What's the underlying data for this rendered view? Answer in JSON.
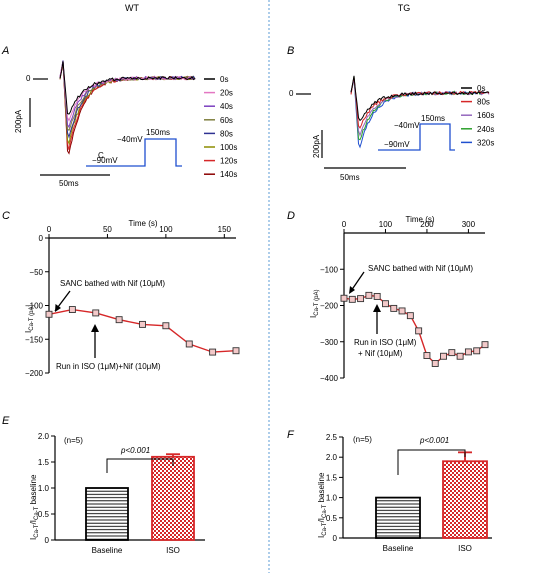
{
  "headers": {
    "left": "WT",
    "right": "TG"
  },
  "colors": {
    "divider": "#5b9bd5",
    "protocol": "#1f4fcf",
    "ivline": "#d62728",
    "ivmarker": "#c0392b",
    "iso_bar": "#d62728"
  },
  "panels": {
    "A": {
      "letter": "A",
      "zero_label": "0",
      "scale_current": "200pA",
      "scale_time": "50ms",
      "extra_label": "C",
      "protocol": {
        "hold": "−90mV",
        "step": "−40mV",
        "duration": "150ms"
      },
      "legend": [
        {
          "label": "0s",
          "color": "#000000"
        },
        {
          "label": "20s",
          "color": "#e377c2"
        },
        {
          "label": "40s",
          "color": "#7b3fbf"
        },
        {
          "label": "60s",
          "color": "#7f7f3f"
        },
        {
          "label": "80s",
          "color": "#2e3192"
        },
        {
          "label": "100s",
          "color": "#8c8c00"
        },
        {
          "label": "120s",
          "color": "#d62728"
        },
        {
          "label": "140s",
          "color": "#8b0000"
        }
      ]
    },
    "B": {
      "letter": "B",
      "zero_label": "0",
      "scale_current": "200pA",
      "scale_time": "50ms",
      "protocol": {
        "hold": "−90mV",
        "step": "−40mV",
        "duration": "150ms"
      },
      "legend": [
        {
          "label": "0s",
          "color": "#000000"
        },
        {
          "label": "80s",
          "color": "#d62728"
        },
        {
          "label": "160s",
          "color": "#9467bd"
        },
        {
          "label": "240s",
          "color": "#2ca02c"
        },
        {
          "label": "320s",
          "color": "#1f4fcf"
        }
      ]
    },
    "C": {
      "letter": "C",
      "annotation_top": "SANC bathed with Nif (10μM)",
      "annotation_bottom": "Run in ISO (1μM)+Nif (10μM)",
      "ylabel_main": "I",
      "ylabel_sub": "Ca-T (pA)"
    },
    "D": {
      "letter": "D",
      "annotation_top": "SANC bathed with Nif (10μM)",
      "annotation_bottom_1": "Run in ISO (1μM)",
      "annotation_bottom_2": "+ Nif (10μM)",
      "ylabel_main": "I",
      "ylabel_sub": "Ca-T (pA)"
    },
    "E": {
      "letter": "E",
      "n_label": "(n=5)",
      "p_label": "p<0.001",
      "ylabel": "I",
      "ylabel_sub1": "Ca-T",
      "ylabel_mid": "/I",
      "ylabel_sub2": "Ca-T",
      "ylabel_end": " baseline"
    },
    "F": {
      "letter": "F",
      "n_label": "(n=5)",
      "p_label": "p<0.001",
      "ylabel": "I",
      "ylabel_sub1": "Ca-T",
      "ylabel_mid": "/I",
      "ylabel_sub2": "Ca-T",
      "ylabel_end": " baseline"
    }
  },
  "chart_data": [
    {
      "panel": "C",
      "type": "line",
      "xlabel": "Time (s)",
      "xlim": [
        0,
        160
      ],
      "xticks": [
        0,
        50,
        100,
        150
      ],
      "ylim": [
        -200,
        0
      ],
      "yticks": [
        0,
        -50,
        -100,
        -150,
        -200
      ],
      "x": [
        0,
        20,
        40,
        60,
        80,
        100,
        120,
        140,
        160
      ],
      "y": [
        -113,
        -106,
        -111,
        -121,
        -128,
        -130,
        -157,
        -169,
        -167
      ]
    },
    {
      "panel": "D",
      "type": "line",
      "xlabel": "Time (s)",
      "xlim": [
        0,
        340
      ],
      "xticks": [
        0,
        100,
        200,
        300
      ],
      "ylim": [
        -400,
        0
      ],
      "yticks": [
        -100,
        -200,
        -300,
        -400
      ],
      "x": [
        0,
        20,
        40,
        60,
        80,
        100,
        120,
        140,
        160,
        180,
        200,
        220,
        240,
        260,
        280,
        300,
        320,
        340
      ],
      "y": [
        -180,
        -183,
        -181,
        -172,
        -175,
        -195,
        -208,
        -215,
        -228,
        -270,
        -338,
        -360,
        -340,
        -330,
        -340,
        -328,
        -325,
        -308
      ]
    },
    {
      "panel": "E",
      "type": "bar",
      "categories": [
        "Baseline",
        "ISO"
      ],
      "values": [
        1.0,
        1.6
      ],
      "errors": [
        0,
        0.05
      ],
      "ylim": [
        0,
        2.0
      ],
      "yticks": [
        0,
        0.5,
        1.0,
        1.5,
        2.0
      ]
    },
    {
      "panel": "F",
      "type": "bar",
      "categories": [
        "Baseline",
        "ISO"
      ],
      "values": [
        1.0,
        1.9
      ],
      "errors": [
        0,
        0.22
      ],
      "ylim": [
        0,
        2.5
      ],
      "yticks": [
        0,
        0.5,
        1.0,
        1.5,
        2.0,
        2.5
      ]
    }
  ]
}
